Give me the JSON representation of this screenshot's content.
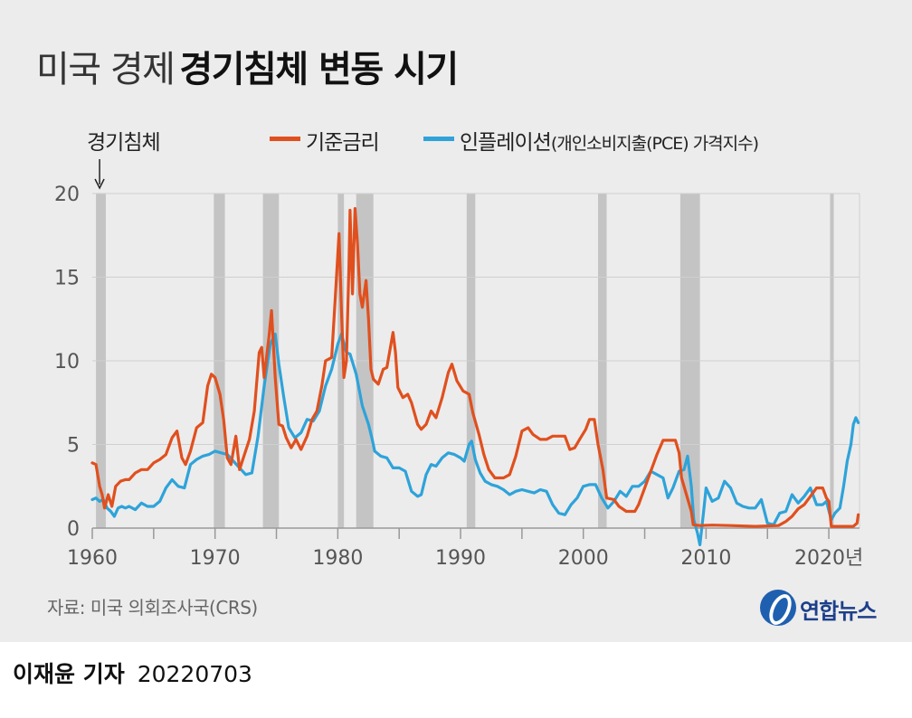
{
  "header": {
    "title_light": "미국 경제",
    "title_bold": "경기침체 변동 시기"
  },
  "footer": {
    "source": "자료: 미국 의회조사국(CRS)",
    "logo": "연합뉴스"
  },
  "byline": {
    "author": "이재윤 기자",
    "date": "20220703"
  },
  "colors": {
    "rate": "#e0501e",
    "inflation": "#2ea3d9",
    "recession": "#c4c4c4",
    "grid": "#cfcfcf",
    "axis": "#999999",
    "text": "#555555"
  },
  "chart_data": {
    "type": "line",
    "recession_label": "경기침체",
    "xlim": [
      1960,
      2022.5
    ],
    "ylim": [
      0,
      20
    ],
    "y_ticks": [
      0,
      5,
      10,
      15,
      20
    ],
    "x_ticks": [
      1960,
      1965,
      1970,
      1975,
      1980,
      1985,
      1990,
      1995,
      2000,
      2005,
      2010,
      2015,
      2020
    ],
    "x_tick_labels": [
      {
        "x": 1960,
        "label": "1960"
      },
      {
        "x": 1970,
        "label": "1970"
      },
      {
        "x": 1980,
        "label": "1980"
      },
      {
        "x": 1990,
        "label": "1990"
      },
      {
        "x": 2000,
        "label": "2000"
      },
      {
        "x": 2010,
        "label": "2010"
      },
      {
        "x": 2020,
        "label": "2020년"
      }
    ],
    "recessions": [
      [
        1960.3,
        1961.1
      ],
      [
        1969.9,
        1970.8
      ],
      [
        1973.9,
        1975.2
      ],
      [
        1980.0,
        1980.5
      ],
      [
        1981.5,
        1982.9
      ],
      [
        1990.5,
        1991.2
      ],
      [
        2001.2,
        2001.9
      ],
      [
        2007.9,
        2009.5
      ],
      [
        2020.1,
        2020.4
      ]
    ],
    "grid": "horizontal",
    "series": [
      {
        "name": "기준금리",
        "points": [
          [
            1960.0,
            3.9
          ],
          [
            1960.3,
            3.8
          ],
          [
            1960.6,
            2.5
          ],
          [
            1960.8,
            2.0
          ],
          [
            1961.0,
            1.2
          ],
          [
            1961.3,
            2.0
          ],
          [
            1961.6,
            1.3
          ],
          [
            1961.9,
            2.5
          ],
          [
            1962.3,
            2.8
          ],
          [
            1962.7,
            2.9
          ],
          [
            1963.0,
            2.9
          ],
          [
            1963.5,
            3.3
          ],
          [
            1964.0,
            3.5
          ],
          [
            1964.5,
            3.5
          ],
          [
            1965.0,
            3.9
          ],
          [
            1965.5,
            4.1
          ],
          [
            1966.0,
            4.4
          ],
          [
            1966.5,
            5.4
          ],
          [
            1966.9,
            5.8
          ],
          [
            1967.3,
            4.2
          ],
          [
            1967.6,
            3.8
          ],
          [
            1968.0,
            4.6
          ],
          [
            1968.5,
            6.0
          ],
          [
            1969.0,
            6.3
          ],
          [
            1969.4,
            8.5
          ],
          [
            1969.7,
            9.2
          ],
          [
            1970.0,
            9.0
          ],
          [
            1970.4,
            8.0
          ],
          [
            1970.7,
            6.5
          ],
          [
            1971.0,
            4.2
          ],
          [
            1971.3,
            3.8
          ],
          [
            1971.7,
            5.5
          ],
          [
            1972.0,
            3.5
          ],
          [
            1972.4,
            4.4
          ],
          [
            1972.8,
            5.3
          ],
          [
            1973.2,
            7.0
          ],
          [
            1973.6,
            10.5
          ],
          [
            1973.8,
            10.8
          ],
          [
            1974.0,
            9.0
          ],
          [
            1974.4,
            11.5
          ],
          [
            1974.6,
            13.0
          ],
          [
            1974.9,
            9.0
          ],
          [
            1975.2,
            6.2
          ],
          [
            1975.5,
            6.1
          ],
          [
            1975.8,
            5.4
          ],
          [
            1976.2,
            4.8
          ],
          [
            1976.6,
            5.3
          ],
          [
            1977.0,
            4.7
          ],
          [
            1977.5,
            5.5
          ],
          [
            1977.9,
            6.5
          ],
          [
            1978.3,
            7.0
          ],
          [
            1978.7,
            8.5
          ],
          [
            1979.0,
            10.0
          ],
          [
            1979.5,
            10.2
          ],
          [
            1979.8,
            13.8
          ],
          [
            1980.1,
            17.6
          ],
          [
            1980.3,
            13.0
          ],
          [
            1980.5,
            9.0
          ],
          [
            1980.7,
            10.0
          ],
          [
            1980.9,
            15.5
          ],
          [
            1981.0,
            19.0
          ],
          [
            1981.2,
            14.0
          ],
          [
            1981.4,
            19.1
          ],
          [
            1981.6,
            17.0
          ],
          [
            1981.8,
            14.0
          ],
          [
            1982.0,
            13.2
          ],
          [
            1982.3,
            14.8
          ],
          [
            1982.5,
            12.5
          ],
          [
            1982.7,
            9.5
          ],
          [
            1982.9,
            8.9
          ],
          [
            1983.3,
            8.6
          ],
          [
            1983.7,
            9.5
          ],
          [
            1984.0,
            9.6
          ],
          [
            1984.5,
            11.7
          ],
          [
            1984.7,
            10.5
          ],
          [
            1984.9,
            8.4
          ],
          [
            1985.3,
            7.8
          ],
          [
            1985.7,
            8.0
          ],
          [
            1986.0,
            7.5
          ],
          [
            1986.5,
            6.2
          ],
          [
            1986.8,
            5.9
          ],
          [
            1987.2,
            6.2
          ],
          [
            1987.6,
            7.0
          ],
          [
            1988.0,
            6.6
          ],
          [
            1988.5,
            7.8
          ],
          [
            1989.0,
            9.3
          ],
          [
            1989.3,
            9.8
          ],
          [
            1989.7,
            8.8
          ],
          [
            1990.2,
            8.2
          ],
          [
            1990.7,
            8.0
          ],
          [
            1991.0,
            6.9
          ],
          [
            1991.5,
            5.6
          ],
          [
            1991.9,
            4.4
          ],
          [
            1992.3,
            3.5
          ],
          [
            1992.8,
            3.0
          ],
          [
            1993.5,
            3.0
          ],
          [
            1994.0,
            3.2
          ],
          [
            1994.5,
            4.3
          ],
          [
            1995.0,
            5.8
          ],
          [
            1995.5,
            6.0
          ],
          [
            1995.9,
            5.6
          ],
          [
            1996.5,
            5.3
          ],
          [
            1997.0,
            5.3
          ],
          [
            1997.5,
            5.5
          ],
          [
            1998.0,
            5.5
          ],
          [
            1998.5,
            5.5
          ],
          [
            1998.9,
            4.7
          ],
          [
            1999.3,
            4.8
          ],
          [
            1999.7,
            5.3
          ],
          [
            2000.2,
            5.9
          ],
          [
            2000.5,
            6.5
          ],
          [
            2000.9,
            6.5
          ],
          [
            2001.2,
            5.0
          ],
          [
            2001.6,
            3.5
          ],
          [
            2001.9,
            1.8
          ],
          [
            2002.5,
            1.7
          ],
          [
            2002.9,
            1.3
          ],
          [
            2003.5,
            1.0
          ],
          [
            2004.2,
            1.0
          ],
          [
            2004.5,
            1.4
          ],
          [
            2005.0,
            2.4
          ],
          [
            2005.5,
            3.4
          ],
          [
            2006.0,
            4.4
          ],
          [
            2006.5,
            5.25
          ],
          [
            2007.0,
            5.25
          ],
          [
            2007.5,
            5.25
          ],
          [
            2007.8,
            4.5
          ],
          [
            2008.0,
            3.0
          ],
          [
            2008.4,
            2.0
          ],
          [
            2008.8,
            1.0
          ],
          [
            2008.95,
            0.2
          ],
          [
            2009.5,
            0.15
          ],
          [
            2010.5,
            0.18
          ],
          [
            2012.0,
            0.15
          ],
          [
            2014.0,
            0.1
          ],
          [
            2015.9,
            0.15
          ],
          [
            2016.5,
            0.4
          ],
          [
            2017.0,
            0.7
          ],
          [
            2017.5,
            1.15
          ],
          [
            2018.0,
            1.4
          ],
          [
            2018.5,
            1.9
          ],
          [
            2019.0,
            2.4
          ],
          [
            2019.5,
            2.4
          ],
          [
            2019.8,
            1.8
          ],
          [
            2020.0,
            1.6
          ],
          [
            2020.2,
            0.1
          ],
          [
            2021.0,
            0.1
          ],
          [
            2022.0,
            0.1
          ],
          [
            2022.3,
            0.3
          ],
          [
            2022.4,
            0.8
          ]
        ]
      },
      {
        "name": "인플레이션",
        "note": "(개인소비지출(PCE) 가격지수)",
        "points": [
          [
            1960.0,
            1.7
          ],
          [
            1960.3,
            1.8
          ],
          [
            1960.6,
            1.6
          ],
          [
            1960.9,
            1.7
          ],
          [
            1961.2,
            1.2
          ],
          [
            1961.5,
            1.0
          ],
          [
            1961.8,
            0.7
          ],
          [
            1962.1,
            1.2
          ],
          [
            1962.4,
            1.3
          ],
          [
            1962.7,
            1.2
          ],
          [
            1963.0,
            1.3
          ],
          [
            1963.5,
            1.1
          ],
          [
            1964.0,
            1.5
          ],
          [
            1964.5,
            1.3
          ],
          [
            1965.0,
            1.3
          ],
          [
            1965.5,
            1.6
          ],
          [
            1966.0,
            2.4
          ],
          [
            1966.5,
            2.9
          ],
          [
            1967.0,
            2.5
          ],
          [
            1967.5,
            2.4
          ],
          [
            1968.0,
            3.8
          ],
          [
            1968.5,
            4.1
          ],
          [
            1969.0,
            4.3
          ],
          [
            1969.5,
            4.4
          ],
          [
            1970.0,
            4.6
          ],
          [
            1970.5,
            4.5
          ],
          [
            1971.0,
            4.4
          ],
          [
            1971.5,
            4.0
          ],
          [
            1972.0,
            3.6
          ],
          [
            1972.5,
            3.2
          ],
          [
            1973.0,
            3.3
          ],
          [
            1973.5,
            5.5
          ],
          [
            1974.0,
            8.5
          ],
          [
            1974.5,
            11.0
          ],
          [
            1974.9,
            11.6
          ],
          [
            1975.2,
            9.8
          ],
          [
            1975.6,
            7.8
          ],
          [
            1976.0,
            6.0
          ],
          [
            1976.5,
            5.4
          ],
          [
            1977.0,
            5.7
          ],
          [
            1977.5,
            6.5
          ],
          [
            1978.0,
            6.4
          ],
          [
            1978.5,
            7.0
          ],
          [
            1979.0,
            8.5
          ],
          [
            1979.5,
            9.5
          ],
          [
            1980.0,
            11.0
          ],
          [
            1980.3,
            11.6
          ],
          [
            1980.7,
            10.5
          ],
          [
            1981.0,
            10.4
          ],
          [
            1981.5,
            9.2
          ],
          [
            1982.0,
            7.3
          ],
          [
            1982.5,
            6.2
          ],
          [
            1982.8,
            5.3
          ],
          [
            1983.0,
            4.6
          ],
          [
            1983.5,
            4.3
          ],
          [
            1984.0,
            4.2
          ],
          [
            1984.5,
            3.6
          ],
          [
            1985.0,
            3.6
          ],
          [
            1985.5,
            3.4
          ],
          [
            1986.0,
            2.2
          ],
          [
            1986.5,
            1.9
          ],
          [
            1986.8,
            2.0
          ],
          [
            1987.2,
            3.2
          ],
          [
            1987.6,
            3.8
          ],
          [
            1988.0,
            3.7
          ],
          [
            1988.5,
            4.2
          ],
          [
            1989.0,
            4.5
          ],
          [
            1989.5,
            4.4
          ],
          [
            1990.0,
            4.2
          ],
          [
            1990.3,
            4.0
          ],
          [
            1990.7,
            5.0
          ],
          [
            1990.9,
            5.2
          ],
          [
            1991.2,
            4.1
          ],
          [
            1991.6,
            3.3
          ],
          [
            1992.0,
            2.8
          ],
          [
            1992.5,
            2.6
          ],
          [
            1993.0,
            2.5
          ],
          [
            1993.5,
            2.3
          ],
          [
            1994.0,
            2.0
          ],
          [
            1994.5,
            2.2
          ],
          [
            1995.0,
            2.3
          ],
          [
            1995.5,
            2.2
          ],
          [
            1996.0,
            2.1
          ],
          [
            1996.5,
            2.3
          ],
          [
            1997.0,
            2.2
          ],
          [
            1997.5,
            1.4
          ],
          [
            1998.0,
            0.9
          ],
          [
            1998.5,
            0.8
          ],
          [
            1999.0,
            1.4
          ],
          [
            1999.5,
            1.8
          ],
          [
            2000.0,
            2.5
          ],
          [
            2000.5,
            2.6
          ],
          [
            2001.0,
            2.6
          ],
          [
            2001.5,
            1.8
          ],
          [
            2002.0,
            1.2
          ],
          [
            2002.5,
            1.6
          ],
          [
            2003.0,
            2.2
          ],
          [
            2003.5,
            1.9
          ],
          [
            2004.0,
            2.5
          ],
          [
            2004.5,
            2.5
          ],
          [
            2005.0,
            2.8
          ],
          [
            2005.5,
            3.4
          ],
          [
            2006.0,
            3.2
          ],
          [
            2006.5,
            3.0
          ],
          [
            2006.9,
            1.8
          ],
          [
            2007.3,
            2.4
          ],
          [
            2007.8,
            3.4
          ],
          [
            2008.2,
            3.5
          ],
          [
            2008.5,
            4.3
          ],
          [
            2008.8,
            2.5
          ],
          [
            2009.0,
            0.5
          ],
          [
            2009.3,
            -0.3
          ],
          [
            2009.5,
            -1.0
          ],
          [
            2009.8,
            1.0
          ],
          [
            2010.0,
            2.4
          ],
          [
            2010.5,
            1.6
          ],
          [
            2011.0,
            1.8
          ],
          [
            2011.5,
            2.8
          ],
          [
            2012.0,
            2.4
          ],
          [
            2012.5,
            1.5
          ],
          [
            2013.0,
            1.3
          ],
          [
            2013.5,
            1.2
          ],
          [
            2014.0,
            1.2
          ],
          [
            2014.5,
            1.7
          ],
          [
            2015.0,
            0.3
          ],
          [
            2015.5,
            0.2
          ],
          [
            2016.0,
            0.9
          ],
          [
            2016.5,
            1.0
          ],
          [
            2017.0,
            2.0
          ],
          [
            2017.5,
            1.5
          ],
          [
            2018.0,
            1.9
          ],
          [
            2018.5,
            2.4
          ],
          [
            2019.0,
            1.4
          ],
          [
            2019.5,
            1.4
          ],
          [
            2019.8,
            1.6
          ],
          [
            2020.2,
            0.5
          ],
          [
            2020.5,
            0.9
          ],
          [
            2020.9,
            1.2
          ],
          [
            2021.2,
            2.5
          ],
          [
            2021.5,
            4.0
          ],
          [
            2021.8,
            5.0
          ],
          [
            2022.0,
            6.2
          ],
          [
            2022.2,
            6.6
          ],
          [
            2022.4,
            6.3
          ]
        ]
      }
    ]
  }
}
